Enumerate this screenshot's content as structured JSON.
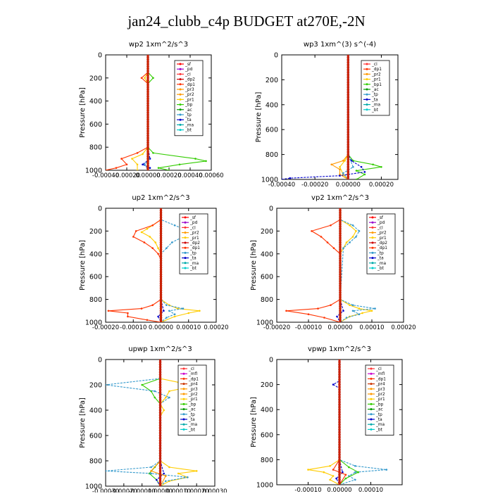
{
  "figure": {
    "title": "jan24_clubb_c4p  BUDGET at270E,-2N",
    "ylabel": "Pressure [hPa]"
  },
  "colors": {
    "_sf": "#ff0000",
    "_pd": "#9900cc",
    "_cl": "#ff3333",
    "_dp2": "#cc0000",
    "_dp1": "#ff3300",
    "_pr3": "#ff9900",
    "_pr2": "#ff9900",
    "_pr1": "#ffcc00",
    "_bp": "#33cc00",
    "_bp1": "#33cc00",
    "_ac": "#009900",
    "_tp": "#3399cc",
    "_ta": "#0000cc",
    "_ma": "#00aaaa",
    "_bt": "#00cccc",
    "_mfl": "#cc00cc",
    "_pr4": "#cc3300"
  },
  "chart_data": [
    {
      "type": "line",
      "title": "wp2   1xm^2/s^3",
      "xlim": [
        -0.0004,
        0.0006
      ],
      "xticks": [
        -0.0004,
        -0.0002,
        0.0,
        0.0002,
        0.0004,
        0.0006
      ],
      "xtick_labels": [
        "-0.00040",
        "-0.00020",
        "0.00000",
        "0.00020",
        "0.00040",
        "0.00060"
      ],
      "ylim": [
        1000,
        0
      ],
      "yticks": [
        0,
        200,
        400,
        600,
        800,
        1000
      ],
      "legend": [
        "_sf",
        "_pd",
        "_cl",
        "_dp2",
        "_dp1",
        "_pr3",
        "_pr2",
        "_pr1",
        "_bp",
        "_ac",
        "_tp",
        "_ta",
        "_ma",
        "_bt"
      ],
      "series": [
        {
          "name": "_bp",
          "p": [
            0,
            150,
            200,
            250,
            300,
            800,
            850,
            900,
            920,
            950,
            980,
            1000
          ],
          "values": [
            0,
            0,
            5e-05,
            0.0,
            0,
            0,
            5e-05,
            0.00045,
            0.00055,
            0.0003,
            0.0001,
            0.0002
          ]
        },
        {
          "name": "_pr1",
          "p": [
            0,
            150,
            200,
            250,
            300,
            800,
            860,
            900,
            950,
            1000
          ],
          "values": [
            0,
            0,
            -3e-05,
            0,
            0,
            0,
            -5e-05,
            -0.00015,
            -0.0001,
            -0.0001
          ]
        },
        {
          "name": "_dp1",
          "p": [
            0,
            150,
            200,
            250,
            300,
            800,
            850,
            900,
            950,
            980,
            1000
          ],
          "values": [
            0,
            0,
            -6e-05,
            0,
            0,
            0,
            -0.0001,
            -0.00025,
            -0.0002,
            -0.0003,
            -0.0004
          ]
        },
        {
          "name": "_ta",
          "p": [
            0,
            800,
            900,
            950,
            980,
            1000
          ],
          "values": [
            0,
            0,
            2e-05,
            -5e-05,
            2e-05,
            0
          ]
        },
        {
          "name": "_tp",
          "p": [
            0,
            800,
            900,
            950,
            1000
          ],
          "values": [
            0,
            0,
            1e-05,
            -3e-05,
            0
          ]
        },
        {
          "name": "_pd",
          "p": [
            0,
            1000
          ],
          "values": [
            0,
            0
          ]
        },
        {
          "name": "_bt",
          "p": [
            0,
            1000
          ],
          "values": [
            0,
            0
          ]
        }
      ]
    },
    {
      "type": "line",
      "title": "wp3   1xm^(3) s^(-4)",
      "xlim": [
        -0.0004,
        0.0003
      ],
      "xticks": [
        -0.0004,
        -0.0002,
        0.0,
        0.0002
      ],
      "xtick_labels": [
        "-0.00040",
        "-0.00020",
        "0.00000",
        "0.00020"
      ],
      "ylim": [
        1000,
        0
      ],
      "yticks": [
        0,
        200,
        400,
        600,
        800,
        1000
      ],
      "legend": [
        "_cl",
        "_dp1",
        "_pr2",
        "_pr1",
        "_bp1",
        "_ac",
        "_tp",
        "_ta",
        "_ma",
        "_bt"
      ],
      "series": [
        {
          "name": "_bp1",
          "p": [
            0,
            800,
            850,
            880,
            900,
            930,
            960,
            1000
          ],
          "values": [
            0,
            0,
            3e-05,
            0.00015,
            0.0002,
            5e-05,
            0.0001,
            5e-05
          ]
        },
        {
          "name": "_pr2",
          "p": [
            0,
            800,
            850,
            880,
            920,
            960,
            1000
          ],
          "values": [
            0,
            0,
            -3e-05,
            -0.0001,
            -5e-05,
            -5e-05,
            0
          ]
        },
        {
          "name": "_pr1",
          "p": [
            0,
            800,
            850,
            900,
            960,
            1000
          ],
          "values": [
            0,
            0,
            -2e-05,
            -5e-05,
            -3e-05,
            0
          ]
        },
        {
          "name": "_ta",
          "p": [
            0,
            800,
            850,
            900,
            940,
            970,
            990,
            1000
          ],
          "values": [
            0,
            0,
            2e-05,
            8e-05,
            0.0001,
            -5e-05,
            -0.00035,
            -0.0004
          ]
        },
        {
          "name": "_tp",
          "p": [
            0,
            800,
            900,
            950,
            1000
          ],
          "values": [
            0,
            0,
            3e-05,
            -3e-05,
            0
          ]
        },
        {
          "name": "_cl",
          "p": [
            0,
            1000
          ],
          "values": [
            0,
            0
          ]
        },
        {
          "name": "_dp1",
          "p": [
            0,
            1000
          ],
          "values": [
            0,
            0
          ]
        }
      ]
    },
    {
      "type": "line",
      "title": "up2   1xm^2/s^3",
      "xlim": [
        -0.0002,
        0.0002
      ],
      "xticks": [
        -0.0002,
        -0.0001,
        0.0,
        0.0001,
        0.0002
      ],
      "xtick_labels": [
        "-0.00020",
        "-0.00010",
        "0.00000",
        "0.00010",
        "0.00020"
      ],
      "ylim": [
        1000,
        0
      ],
      "yticks": [
        0,
        200,
        400,
        600,
        800,
        1000
      ],
      "legend": [
        "_sf",
        "_pd",
        "_cl",
        "_pr2",
        "_pr1",
        "_dp2",
        "_dp1",
        "_tp",
        "_ta",
        "_ma",
        "_bt"
      ],
      "series": [
        {
          "name": "_pr1",
          "p": [
            0,
            100,
            150,
            180,
            210,
            250,
            300,
            350,
            400,
            450,
            800,
            850,
            880,
            900,
            920,
            950,
            1000
          ],
          "values": [
            0,
            0,
            -3e-05,
            -5e-05,
            -7e-05,
            -4e-05,
            -2e-05,
            -1e-05,
            0,
            0,
            0,
            3e-05,
            6e-05,
            0.00014,
            0.0001,
            5e-05,
            0
          ]
        },
        {
          "name": "_dp1",
          "p": [
            0,
            100,
            150,
            200,
            250,
            300,
            350,
            400,
            450,
            800,
            850,
            880,
            900,
            920,
            950,
            980,
            1000
          ],
          "values": [
            0,
            0,
            -3e-05,
            -9e-05,
            -0.0001,
            -6e-05,
            -3e-05,
            -1e-05,
            0,
            0,
            -3e-05,
            -7e-05,
            -0.00019,
            -0.00012,
            -0.00012,
            -5e-05,
            0
          ]
        },
        {
          "name": "_tp",
          "p": [
            0,
            100,
            150,
            200,
            250,
            300,
            350,
            400,
            800,
            850,
            880,
            900,
            930,
            960,
            1000
          ],
          "values": [
            0,
            0,
            5e-05,
            0.0001,
            8e-05,
            4e-05,
            2e-05,
            0,
            0,
            2e-05,
            8e-05,
            3e-05,
            5e-05,
            2e-05,
            0
          ]
        },
        {
          "name": "_ta",
          "p": [
            0,
            800,
            900,
            950,
            1000
          ],
          "values": [
            0,
            0,
            1e-05,
            -1e-05,
            0
          ]
        },
        {
          "name": "_pd",
          "p": [
            0,
            1000
          ],
          "values": [
            0,
            0
          ]
        },
        {
          "name": "_sf",
          "p": [
            0,
            1000
          ],
          "values": [
            0,
            0
          ]
        }
      ]
    },
    {
      "type": "line",
      "title": "vp2   1xm^2/s^3",
      "xlim": [
        -0.0002,
        0.0002
      ],
      "xticks": [
        -0.0002,
        -0.0001,
        0.0,
        0.0001,
        0.0002
      ],
      "xtick_labels": [
        "-0.00020",
        "-0.00010",
        "0.00000",
        "0.00010",
        "0.00020"
      ],
      "ylim": [
        1000,
        0
      ],
      "yticks": [
        0,
        200,
        400,
        600,
        800,
        1000
      ],
      "legend": [
        "_sf",
        "_pd",
        "_cl",
        "_pr2",
        "_pr1",
        "_dp2",
        "_dp1",
        "_tp",
        "_ta",
        "_ma",
        "_bt"
      ],
      "series": [
        {
          "name": "_pr1",
          "p": [
            0,
            100,
            150,
            200,
            250,
            300,
            350,
            400,
            800,
            850,
            880,
            900,
            920,
            950,
            1000
          ],
          "values": [
            0,
            0,
            3e-05,
            5e-05,
            4e-05,
            2e-05,
            1e-05,
            0,
            0,
            3e-05,
            6e-05,
            0.0001,
            7e-05,
            3e-05,
            0
          ]
        },
        {
          "name": "_dp1",
          "p": [
            0,
            100,
            150,
            200,
            250,
            300,
            350,
            400,
            800,
            850,
            880,
            900,
            930,
            960,
            1000
          ],
          "values": [
            0,
            0,
            -3e-05,
            -9e-05,
            -6e-05,
            -4e-05,
            -2e-05,
            0,
            0,
            -3e-05,
            -7e-05,
            -0.00017,
            -0.0001,
            -5e-05,
            0
          ]
        },
        {
          "name": "_tp",
          "p": [
            0,
            100,
            150,
            200,
            250,
            300,
            350,
            800,
            850,
            880,
            900,
            930,
            960,
            1000
          ],
          "values": [
            0,
            0,
            4e-05,
            6e-05,
            5e-05,
            3e-05,
            1e-05,
            0,
            4e-05,
            0.00011,
            4e-05,
            6e-05,
            2e-05,
            0
          ]
        },
        {
          "name": "_ta",
          "p": [
            0,
            800,
            900,
            950,
            1000
          ],
          "values": [
            0,
            0,
            1e-05,
            -1e-05,
            0
          ]
        },
        {
          "name": "_pd",
          "p": [
            0,
            1000
          ],
          "values": [
            0,
            0
          ]
        },
        {
          "name": "_sf",
          "p": [
            0,
            1000
          ],
          "values": [
            0,
            0
          ]
        }
      ]
    },
    {
      "type": "line",
      "title": "upwp   1xm^2/s^3",
      "xlim": [
        -0.0003,
        0.0003
      ],
      "xticks": [
        -0.0003,
        -0.0002,
        -0.0001,
        0.0,
        0.0001,
        0.0002,
        0.0003
      ],
      "xtick_labels": [
        "-0.00030",
        "-0.00020",
        "-0.00010",
        "0.00000",
        "0.00010",
        "0.00020",
        "0.00030"
      ],
      "ylim": [
        1000,
        0
      ],
      "yticks": [
        0,
        200,
        400,
        600,
        800,
        1000
      ],
      "legend": [
        "_cl",
        "_mfl",
        "_dp1",
        "_pr4",
        "_pr3",
        "_pr2",
        "_pr1",
        "_bp",
        "_ac",
        "_tp",
        "_ta",
        "_ma",
        "_bt"
      ],
      "series": [
        {
          "name": "_pr1",
          "p": [
            0,
            150,
            180,
            200,
            220,
            250,
            300,
            350,
            400,
            450,
            800,
            850,
            880,
            900,
            930,
            960,
            1000
          ],
          "values": [
            0,
            0,
            0.0001,
            0.0002,
            0.00015,
            5e-05,
            3e-05,
            0.0,
            2e-05,
            0,
            0,
            5e-05,
            0.0002,
            0.0001,
            0.00015,
            5e-05,
            0
          ]
        },
        {
          "name": "_bp",
          "p": [
            0,
            150,
            200,
            250,
            300,
            350,
            800,
            850,
            900,
            950,
            1000
          ],
          "values": [
            0,
            0,
            -0.0001,
            -5e-05,
            -3e-05,
            0,
            0,
            -3e-05,
            -6e-05,
            -2e-05,
            0
          ]
        },
        {
          "name": "_tp",
          "p": [
            0,
            150,
            200,
            250,
            300,
            350,
            800,
            850,
            880,
            900,
            930,
            960,
            1000
          ],
          "values": [
            0,
            0,
            -0.0003,
            -3e-05,
            5e-05,
            0,
            0,
            -5e-05,
            -0.0003,
            -5e-05,
            0.00015,
            3e-05,
            0
          ]
        },
        {
          "name": "_ta",
          "p": [
            0,
            800,
            900,
            950,
            1000
          ],
          "values": [
            0,
            0,
            2e-05,
            -2e-05,
            0
          ]
        },
        {
          "name": "_pr2",
          "p": [
            0,
            800,
            880,
            920,
            1000
          ],
          "values": [
            0,
            0,
            -5e-05,
            3e-05,
            0
          ]
        },
        {
          "name": "_cl",
          "p": [
            0,
            1000
          ],
          "values": [
            0,
            0
          ]
        },
        {
          "name": "_mfl",
          "p": [
            0,
            1000
          ],
          "values": [
            0,
            0
          ]
        }
      ]
    },
    {
      "type": "line",
      "title": "vpwp   1xm^2/s^3",
      "xlim": [
        -0.0002,
        0.0002
      ],
      "xticks": [
        -0.0001,
        0.0,
        0.0001
      ],
      "xtick_labels": [
        "-0.00010",
        "0.00000",
        "0.00010"
      ],
      "ylim": [
        1000,
        0
      ],
      "yticks": [
        0,
        200,
        400,
        600,
        800,
        1000
      ],
      "legend": [
        "_cl",
        "_mfl",
        "_dp1",
        "_pr4",
        "_pr3",
        "_pr2",
        "_pr1",
        "_bp",
        "_ac",
        "_tp",
        "_ta",
        "_ma",
        "_bt"
      ],
      "series": [
        {
          "name": "_pr1",
          "p": [
            0,
            800,
            850,
            880,
            900,
            930,
            960,
            1000
          ],
          "values": [
            0,
            0,
            -3e-05,
            -0.0001,
            -5e-05,
            -2e-05,
            -3e-05,
            0
          ]
        },
        {
          "name": "_tp",
          "p": [
            0,
            800,
            850,
            880,
            900,
            930,
            960,
            1000
          ],
          "values": [
            0,
            0,
            5e-05,
            0.00015,
            5e-05,
            3e-05,
            5e-05,
            0
          ]
        },
        {
          "name": "_bp",
          "p": [
            0,
            800,
            860,
            900,
            950,
            1000
          ],
          "values": [
            0,
            0,
            3e-05,
            6e-05,
            2e-05,
            0
          ]
        },
        {
          "name": "_ta",
          "p": [
            0,
            170,
            200,
            230,
            800,
            900,
            950,
            1000
          ],
          "values": [
            0,
            0,
            -2e-05,
            0,
            0,
            1e-05,
            -1e-05,
            0
          ]
        },
        {
          "name": "_dp1",
          "p": [
            0,
            800,
            880,
            920,
            1000
          ],
          "values": [
            0,
            0,
            -2e-05,
            2e-05,
            0
          ]
        },
        {
          "name": "_cl",
          "p": [
            0,
            1000
          ],
          "values": [
            0,
            0
          ]
        },
        {
          "name": "_mfl",
          "p": [
            0,
            1000
          ],
          "values": [
            0,
            0
          ]
        }
      ]
    }
  ]
}
